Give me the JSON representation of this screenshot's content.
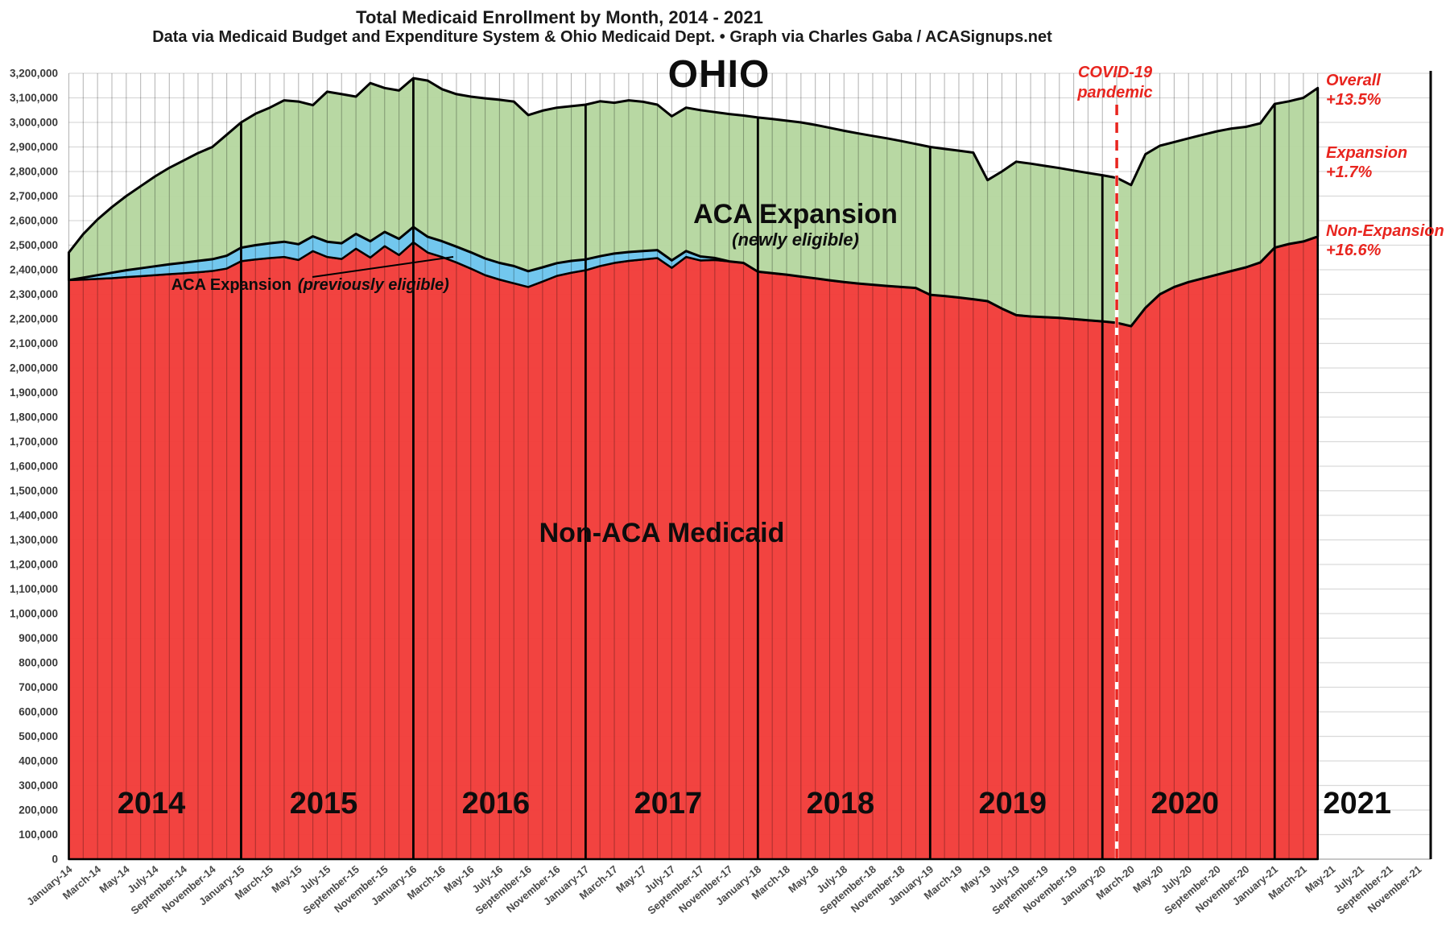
{
  "header": {
    "title": "Total Medicaid Enrollment by Month, 2014 - 2021",
    "subtitle": "Data via Medicaid Budget and Expenditure System & Ohio Medicaid Dept.  •  Graph via Charles Gaba / ACASignups.net",
    "state": "OHIO"
  },
  "colors": {
    "non_aca_fill": "#f23d3a",
    "prev_eligible_fill": "#72c7ee",
    "newly_eligible_fill": "#b6d7a0",
    "outline": "#000000",
    "grid": "#d9d9d9",
    "accent_red": "#e8251f"
  },
  "annotations": {
    "newly_label": "ACA Expansion",
    "newly_sublabel": "(newly eligible)",
    "non_aca_label": "Non-ACA Medicaid",
    "prev_label": "ACA Expansion",
    "prev_sublabel": "(previously eligible)",
    "covid_line1": "COVID-19",
    "covid_line2": "pandemic",
    "overall_label": "Overall",
    "overall_pct": "+13.5%",
    "expansion_label": "Expansion",
    "expansion_pct": "+1.7%",
    "non_expansion_label": "Non-Expansion",
    "non_expansion_pct": "+16.6%"
  },
  "chart_data": {
    "type": "area",
    "stacked": true,
    "title": "Total Medicaid Enrollment by Month, 2014 - 2021",
    "xlabel": "",
    "ylabel": "",
    "ylim": [
      0,
      3200000
    ],
    "y_tick_step": 100000,
    "grid": true,
    "legend_position": "in-chart labels",
    "x_start_month": "2014-01",
    "x_end_month_of_data": "2021-04",
    "x_axis_total_months": 96,
    "covid_line_month_index": 73,
    "value_unit": 1000,
    "series": [
      {
        "name": "Non-ACA Medicaid",
        "color": "#f23d3a",
        "values": [
          2358,
          2360,
          2363,
          2366,
          2370,
          2374,
          2378,
          2382,
          2386,
          2390,
          2395,
          2405,
          2435,
          2442,
          2448,
          2452,
          2440,
          2476,
          2452,
          2444,
          2486,
          2450,
          2496,
          2460,
          2512,
          2470,
          2452,
          2430,
          2405,
          2378,
          2360,
          2345,
          2330,
          2352,
          2375,
          2388,
          2398,
          2415,
          2428,
          2436,
          2442,
          2448,
          2408,
          2452,
          2438,
          2440,
          2434,
          2428,
          2392,
          2386,
          2380,
          2372,
          2365,
          2357,
          2350,
          2344,
          2339,
          2334,
          2330,
          2326,
          2298,
          2293,
          2287,
          2280,
          2272,
          2242,
          2215,
          2210,
          2207,
          2204,
          2199,
          2194,
          2190,
          2184,
          2170,
          2245,
          2300,
          2330,
          2350,
          2365,
          2380,
          2395,
          2410,
          2430,
          2490,
          2505,
          2515,
          2535
        ]
      },
      {
        "name": "ACA Expansion (previously eligible)",
        "color": "#72c7ee",
        "values": [
          0,
          8,
          15,
          22,
          28,
          32,
          36,
          40,
          43,
          46,
          48,
          52,
          55,
          58,
          60,
          62,
          64,
          60,
          62,
          64,
          60,
          66,
          58,
          66,
          62,
          64,
          64,
          64,
          66,
          68,
          68,
          70,
          64,
          58,
          52,
          48,
          44,
          40,
          38,
          36,
          34,
          32,
          30,
          24,
          16,
          8,
          0,
          0,
          0,
          0,
          0,
          0,
          0,
          0,
          0,
          0,
          0,
          0,
          0,
          0,
          0,
          0,
          0,
          0,
          0,
          0,
          0,
          0,
          0,
          0,
          0,
          0,
          0,
          0,
          0,
          0,
          0,
          0,
          0,
          0,
          0,
          0,
          0,
          0,
          0,
          0,
          0,
          0
        ]
      },
      {
        "name": "ACA Expansion (newly eligible)",
        "color": "#b6d7a0",
        "values": [
          112,
          177,
          227,
          267,
          302,
          334,
          366,
          393,
          416,
          439,
          457,
          493,
          510,
          535,
          552,
          576,
          581,
          534,
          611,
          607,
          559,
          644,
          586,
          604,
          606,
          636,
          619,
          621,
          634,
          652,
          664,
          670,
          636,
          638,
          633,
          630,
          630,
          631,
          614,
          618,
          608,
          592,
          587,
          584,
          596,
          594,
          600,
          600,
          628,
          628,
          627,
          628,
          625,
          621,
          616,
          611,
          606,
          601,
          594,
          586,
          602,
          599,
          598,
          597,
          493,
          558,
          625,
          622,
          616,
          610,
          605,
          600,
          595,
          590,
          575,
          625,
          605,
          590,
          585,
          585,
          584,
          580,
          572,
          566,
          585,
          581,
          585,
          605
        ]
      }
    ],
    "x_tick_labels": [
      "January-14",
      "March-14",
      "May-14",
      "July-14",
      "September-14",
      "November-14",
      "January-15",
      "March-15",
      "May-15",
      "July-15",
      "September-15",
      "November-15",
      "January-16",
      "March-16",
      "May-16",
      "July-16",
      "September-16",
      "November-16",
      "January-17",
      "March-17",
      "May-17",
      "July-17",
      "September-17",
      "November-17",
      "January-18",
      "March-18",
      "May-18",
      "July-18",
      "September-18",
      "November-18",
      "January-19",
      "March-19",
      "May-19",
      "July-19",
      "September-19",
      "November-19",
      "January-20",
      "March-20",
      "May-20",
      "July-20",
      "September-20",
      "November-20",
      "January-21",
      "March-21",
      "May-21",
      "July-21",
      "September-21",
      "November-21"
    ],
    "y_tick_labels": [
      "0",
      "100,000",
      "200,000",
      "300,000",
      "400,000",
      "500,000",
      "600,000",
      "700,000",
      "800,000",
      "900,000",
      "1,000,000",
      "1,100,000",
      "1,200,000",
      "1,300,000",
      "1,400,000",
      "1,500,000",
      "1,600,000",
      "1,700,000",
      "1,800,000",
      "1,900,000",
      "2,000,000",
      "2,100,000",
      "2,200,000",
      "2,300,000",
      "2,400,000",
      "2,500,000",
      "2,600,000",
      "2,700,000",
      "2,800,000",
      "2,900,000",
      "3,000,000",
      "3,100,000",
      "3,200,000"
    ],
    "year_labels": [
      "2014",
      "2015",
      "2016",
      "2017",
      "2018",
      "2019",
      "2020",
      "2021"
    ]
  }
}
